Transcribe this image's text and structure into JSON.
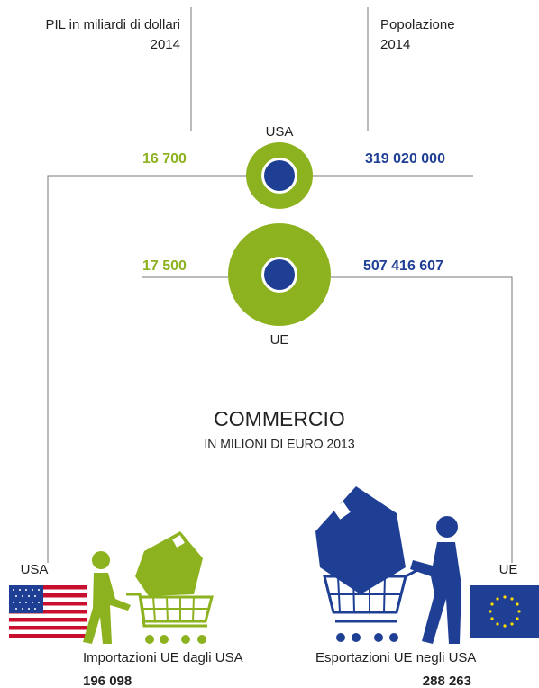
{
  "header": {
    "gdp_label": "PIL in miliardi di dollari",
    "gdp_year": "2014",
    "population_label": "Popolazione",
    "population_year": "2014"
  },
  "usa": {
    "label": "USA",
    "gdp": "16 700",
    "population": "319 020 000"
  },
  "eu": {
    "label": "UE",
    "gdp": "17 500",
    "population": "507 416 607"
  },
  "trade": {
    "title": "COMMERCIO",
    "subtitle": "IN MILIONI DI EURO 2013"
  },
  "imports": {
    "country": "USA",
    "label": "Importazioni UE dagli USA",
    "value": "196 098"
  },
  "exports": {
    "country": "UE",
    "label": "Esportazioni UE negli USA",
    "value": "288 263"
  }
}
